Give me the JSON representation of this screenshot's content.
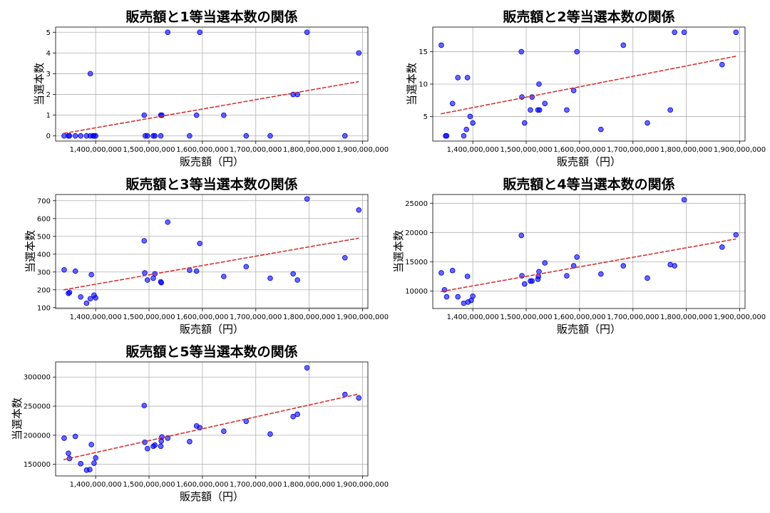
{
  "chart_data": [
    {
      "type": "scatter",
      "title": "販売額と1等当選本数の関係",
      "xlabel": "販売額（円）",
      "ylabel": "当選本数",
      "xlim": [
        1325000000,
        1910000000
      ],
      "ylim": [
        -0.25,
        5.25
      ],
      "xticks": [
        1400000000,
        1500000000,
        1600000000,
        1700000000,
        1800000000,
        1900000000
      ],
      "xtick_labels": [
        "1,400,000,000",
        "1,500,000,000",
        "1,600,000,000",
        "1,700,000,000",
        "1,800,000,000",
        "1,900,000,000"
      ],
      "yticks": [
        0,
        1,
        2,
        3,
        4,
        5
      ],
      "ytick_labels": [
        "0",
        "1",
        "2",
        "3",
        "4",
        "5"
      ],
      "grid": true,
      "points": [
        [
          1341000000,
          0
        ],
        [
          1349000000,
          0
        ],
        [
          1351000000,
          0
        ],
        [
          1362000000,
          0
        ],
        [
          1372000000,
          0
        ],
        [
          1383000000,
          0
        ],
        [
          1390000000,
          0
        ],
        [
          1395000000,
          0
        ],
        [
          1397000000,
          0
        ],
        [
          1400000000,
          0
        ],
        [
          1493000000,
          0
        ],
        [
          1497000000,
          0
        ],
        [
          1508000000,
          0
        ],
        [
          1511000000,
          0
        ],
        [
          1522000000,
          0
        ],
        [
          1576000000,
          0
        ],
        [
          1682000000,
          0
        ],
        [
          1727000000,
          0
        ],
        [
          1867000000,
          0
        ],
        [
          1390000000,
          3
        ],
        [
          1491000000,
          1
        ],
        [
          1522000000,
          1
        ],
        [
          1524000000,
          1
        ],
        [
          1535000000,
          5
        ],
        [
          1595000000,
          5
        ],
        [
          1796000000,
          5
        ],
        [
          1589000000,
          1
        ],
        [
          1640000000,
          1
        ],
        [
          1770000000,
          2
        ],
        [
          1778000000,
          2
        ],
        [
          1893000000,
          4
        ]
      ],
      "trend": {
        "x": [
          1340000000,
          1893000000
        ],
        "y": [
          0.12,
          2.62
        ]
      }
    },
    {
      "type": "scatter",
      "title": "販売額と2等当選本数の関係",
      "xlabel": "販売額（円）",
      "ylabel": "当選本数",
      "xlim": [
        1325000000,
        1910000000
      ],
      "ylim": [
        1.2,
        18.8
      ],
      "xticks": [
        1400000000,
        1500000000,
        1600000000,
        1700000000,
        1800000000,
        1900000000
      ],
      "xtick_labels": [
        "1,400,000,000",
        "1,500,000,000",
        "1,600,000,000",
        "1,700,000,000",
        "1,800,000,000",
        "1,900,000,000"
      ],
      "yticks": [
        5,
        10,
        15
      ],
      "ytick_labels": [
        "5",
        "10",
        "15"
      ],
      "grid": true,
      "points": [
        [
          1341000000,
          16
        ],
        [
          1349000000,
          2
        ],
        [
          1351000000,
          2
        ],
        [
          1362000000,
          7
        ],
        [
          1372000000,
          11
        ],
        [
          1383000000,
          2
        ],
        [
          1388000000,
          3
        ],
        [
          1390000000,
          11
        ],
        [
          1395000000,
          5
        ],
        [
          1400000000,
          4
        ],
        [
          1491000000,
          15
        ],
        [
          1492000000,
          8
        ],
        [
          1497000000,
          4
        ],
        [
          1508000000,
          6
        ],
        [
          1511000000,
          8
        ],
        [
          1522000000,
          6
        ],
        [
          1524000000,
          10
        ],
        [
          1525000000,
          6
        ],
        [
          1535000000,
          7
        ],
        [
          1576000000,
          6
        ],
        [
          1589000000,
          9
        ],
        [
          1595000000,
          15
        ],
        [
          1640000000,
          3
        ],
        [
          1682000000,
          16
        ],
        [
          1727000000,
          4
        ],
        [
          1770000000,
          6
        ],
        [
          1778000000,
          18
        ],
        [
          1796000000,
          18
        ],
        [
          1867000000,
          13
        ],
        [
          1893000000,
          18
        ]
      ],
      "trend": {
        "x": [
          1340000000,
          1893000000
        ],
        "y": [
          5.4,
          14.3
        ]
      }
    },
    {
      "type": "scatter",
      "title": "販売額と3等当選本数の関係",
      "xlabel": "販売額（円）",
      "ylabel": "当選本数",
      "xlim": [
        1325000000,
        1910000000
      ],
      "ylim": [
        95,
        735
      ],
      "xticks": [
        1400000000,
        1500000000,
        1600000000,
        1700000000,
        1800000000,
        1900000000
      ],
      "xtick_labels": [
        "1,400,000,000",
        "1,500,000,000",
        "1,600,000,000",
        "1,700,000,000",
        "1,800,000,000",
        "1,900,000,000"
      ],
      "yticks": [
        100,
        200,
        300,
        400,
        500,
        600,
        700
      ],
      "ytick_labels": [
        "100",
        "200",
        "300",
        "400",
        "500",
        "600",
        "700"
      ],
      "grid": true,
      "points": [
        [
          1341000000,
          312
        ],
        [
          1349000000,
          180
        ],
        [
          1351000000,
          185
        ],
        [
          1362000000,
          305
        ],
        [
          1372000000,
          160
        ],
        [
          1383000000,
          125
        ],
        [
          1390000000,
          150
        ],
        [
          1392000000,
          285
        ],
        [
          1397000000,
          170
        ],
        [
          1400000000,
          155
        ],
        [
          1491000000,
          475
        ],
        [
          1492000000,
          295
        ],
        [
          1497000000,
          255
        ],
        [
          1508000000,
          265
        ],
        [
          1511000000,
          290
        ],
        [
          1522000000,
          245
        ],
        [
          1523000000,
          240
        ],
        [
          1535000000,
          580
        ],
        [
          1576000000,
          310
        ],
        [
          1589000000,
          305
        ],
        [
          1595000000,
          460
        ],
        [
          1640000000,
          275
        ],
        [
          1682000000,
          330
        ],
        [
          1727000000,
          265
        ],
        [
          1770000000,
          290
        ],
        [
          1778000000,
          255
        ],
        [
          1796000000,
          710
        ],
        [
          1867000000,
          380
        ],
        [
          1893000000,
          648
        ]
      ],
      "trend": {
        "x": [
          1340000000,
          1893000000
        ],
        "y": [
          200,
          490
        ]
      }
    },
    {
      "type": "scatter",
      "title": "販売額と4等当選本数の関係",
      "xlabel": "販売額（円）",
      "ylabel": "当選本数",
      "xlim": [
        1325000000,
        1910000000
      ],
      "ylim": [
        7000,
        26500
      ],
      "xticks": [
        1400000000,
        1500000000,
        1600000000,
        1700000000,
        1800000000,
        1900000000
      ],
      "xtick_labels": [
        "1,400,000,000",
        "1,500,000,000",
        "1,600,000,000",
        "1,700,000,000",
        "1,800,000,000",
        "1,900,000,000"
      ],
      "yticks": [
        10000,
        15000,
        20000,
        25000
      ],
      "ytick_labels": [
        "10000",
        "15000",
        "20000",
        "25000"
      ],
      "grid": true,
      "points": [
        [
          1341000000,
          13100
        ],
        [
          1347000000,
          10200
        ],
        [
          1351000000,
          9000
        ],
        [
          1362000000,
          13500
        ],
        [
          1372000000,
          9000
        ],
        [
          1383000000,
          7900
        ],
        [
          1390000000,
          12500
        ],
        [
          1391000000,
          8100
        ],
        [
          1397000000,
          8400
        ],
        [
          1400000000,
          9100
        ],
        [
          1491000000,
          19500
        ],
        [
          1492000000,
          12600
        ],
        [
          1497000000,
          11200
        ],
        [
          1508000000,
          11700
        ],
        [
          1511000000,
          11700
        ],
        [
          1522000000,
          12000
        ],
        [
          1523000000,
          12500
        ],
        [
          1524000000,
          13300
        ],
        [
          1535000000,
          14800
        ],
        [
          1576000000,
          12600
        ],
        [
          1589000000,
          14300
        ],
        [
          1595000000,
          15800
        ],
        [
          1640000000,
          12900
        ],
        [
          1682000000,
          14300
        ],
        [
          1727000000,
          12200
        ],
        [
          1770000000,
          14500
        ],
        [
          1778000000,
          14300
        ],
        [
          1796000000,
          25600
        ],
        [
          1867000000,
          17500
        ],
        [
          1893000000,
          19600
        ]
      ],
      "trend": {
        "x": [
          1340000000,
          1893000000
        ],
        "y": [
          9900,
          18900
        ]
      }
    },
    {
      "type": "scatter",
      "title": "販売額と5等当選本数の関係",
      "xlabel": "販売額（円）",
      "ylabel": "当選本数",
      "xlim": [
        1325000000,
        1910000000
      ],
      "ylim": [
        130000,
        326000
      ],
      "xticks": [
        1400000000,
        1500000000,
        1600000000,
        1700000000,
        1800000000,
        1900000000
      ],
      "xtick_labels": [
        "1,400,000,000",
        "1,500,000,000",
        "1,600,000,000",
        "1,700,000,000",
        "1,800,000,000",
        "1,900,000,000"
      ],
      "yticks": [
        150000,
        200000,
        250000,
        300000
      ],
      "ytick_labels": [
        "150000",
        "200000",
        "250000",
        "300000"
      ],
      "grid": true,
      "points": [
        [
          1341000000,
          195000
        ],
        [
          1349000000,
          169000
        ],
        [
          1351000000,
          160000
        ],
        [
          1362000000,
          198000
        ],
        [
          1372000000,
          151000
        ],
        [
          1383000000,
          140000
        ],
        [
          1389000000,
          141000
        ],
        [
          1392000000,
          184000
        ],
        [
          1397000000,
          152000
        ],
        [
          1400000000,
          161000
        ],
        [
          1491000000,
          251000
        ],
        [
          1492000000,
          188000
        ],
        [
          1497000000,
          177000
        ],
        [
          1508000000,
          181000
        ],
        [
          1511000000,
          183000
        ],
        [
          1522000000,
          181000
        ],
        [
          1523000000,
          190000
        ],
        [
          1524000000,
          197000
        ],
        [
          1535000000,
          195000
        ],
        [
          1576000000,
          189000
        ],
        [
          1589000000,
          216000
        ],
        [
          1595000000,
          213000
        ],
        [
          1640000000,
          207000
        ],
        [
          1682000000,
          224000
        ],
        [
          1727000000,
          202000
        ],
        [
          1770000000,
          232000
        ],
        [
          1778000000,
          236000
        ],
        [
          1796000000,
          316000
        ],
        [
          1867000000,
          270000
        ],
        [
          1893000000,
          264000
        ]
      ],
      "trend": {
        "x": [
          1340000000,
          1893000000
        ],
        "y": [
          158000,
          271000
        ]
      }
    }
  ]
}
